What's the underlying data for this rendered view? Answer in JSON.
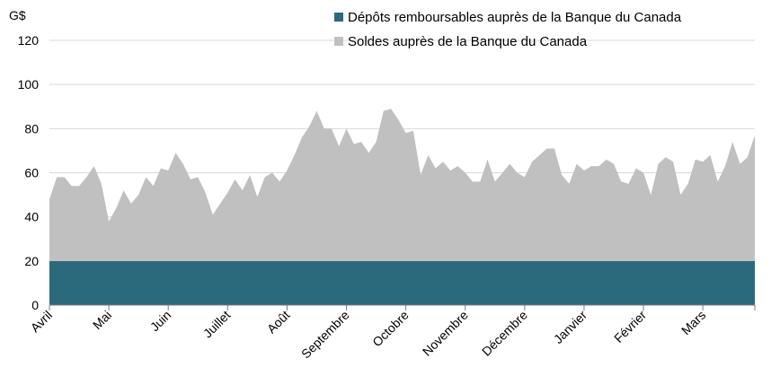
{
  "chart_data": {
    "type": "area",
    "stacked": true,
    "ylabel": "G$",
    "ylim": [
      0,
      120
    ],
    "yticks": [
      0,
      20,
      40,
      60,
      80,
      100,
      120
    ],
    "grid": "horizontal",
    "legend_position": "top-right",
    "x_tick_labels": [
      "Avril",
      "Mai",
      "Juin",
      "Juillet",
      "Août",
      "Septembre",
      "Octobre",
      "Novembre",
      "Décembre",
      "Janvier",
      "Février",
      "Mars"
    ],
    "series": [
      {
        "name": "Dépôts remboursables auprès de la Banque du Canada",
        "color": "#2b6a7c",
        "values": [
          20,
          20,
          20,
          20,
          20,
          20,
          20,
          20,
          20,
          20,
          20,
          20,
          20,
          20,
          20,
          20,
          20,
          20,
          20,
          20,
          20,
          20,
          20,
          20,
          20,
          20,
          20,
          20,
          20,
          20,
          20,
          20,
          20,
          20,
          20,
          20,
          20,
          20,
          20,
          20,
          20,
          20,
          20,
          20,
          20,
          20,
          20,
          20,
          20,
          20,
          20,
          20,
          20,
          20,
          20,
          20,
          20,
          20,
          20,
          20,
          20,
          20,
          20,
          20,
          20,
          20,
          20,
          20,
          20,
          20,
          20,
          20,
          20,
          20,
          20,
          20,
          20,
          20,
          20,
          20,
          20,
          20,
          20,
          20,
          20,
          20,
          20,
          20,
          20,
          20,
          20,
          20,
          20,
          20,
          20,
          20
        ]
      },
      {
        "name": "Soldes auprès de la Banque du Canada",
        "color": "#c0c0c0",
        "values": [
          28,
          38,
          38,
          34,
          34,
          38,
          43,
          35,
          18,
          24,
          32,
          26,
          30,
          38,
          34,
          42,
          41,
          49,
          44,
          37,
          38,
          31,
          21,
          26,
          31,
          37,
          32,
          39,
          29,
          38,
          40,
          36,
          41,
          48,
          56,
          61,
          68,
          60,
          60,
          52,
          60,
          53,
          54,
          49,
          54,
          68,
          69,
          64,
          58,
          59,
          39,
          48,
          42,
          45,
          41,
          43,
          40,
          36,
          36,
          46,
          36,
          40,
          44,
          40,
          38,
          45,
          48,
          51,
          51,
          39,
          35,
          44,
          41,
          43,
          43,
          46,
          44,
          36,
          35,
          42,
          40,
          30,
          44,
          47,
          45,
          30,
          35,
          46,
          45,
          48,
          36,
          43,
          54,
          44,
          47,
          57
        ]
      }
    ],
    "x_tick_indices": [
      0,
      8,
      16,
      24,
      32,
      40,
      48,
      56,
      64,
      72,
      80,
      88,
      95
    ]
  }
}
